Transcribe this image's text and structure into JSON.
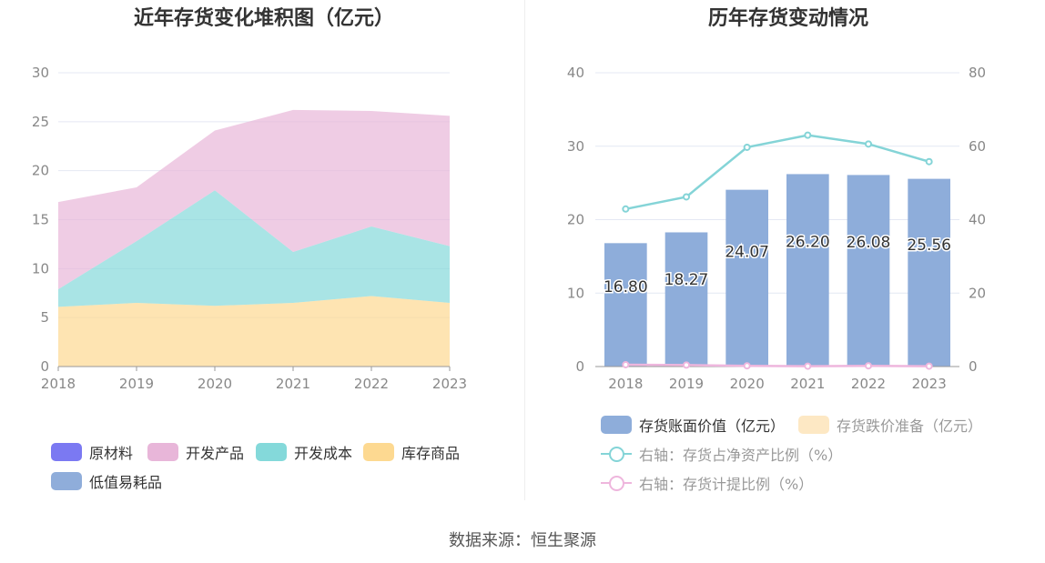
{
  "left": {
    "title": "近年存货变化堆积图（亿元）",
    "chart_data": {
      "type": "area",
      "stacked": true,
      "categories": [
        "2018",
        "2019",
        "2020",
        "2021",
        "2022",
        "2023"
      ],
      "ylim": [
        0,
        30
      ],
      "yticks": [
        0,
        5,
        10,
        15,
        20,
        25,
        30
      ],
      "grid": true,
      "legend_position": "bottom",
      "series": [
        {
          "name": "库存商品",
          "color": "#fdd991",
          "values": [
            6.1,
            6.5,
            6.2,
            6.5,
            7.2,
            6.5
          ]
        },
        {
          "name": "开发成本",
          "color": "#84d9da",
          "values": [
            1.8,
            6.3,
            11.8,
            5.2,
            7.1,
            5.8
          ]
        },
        {
          "name": "开发产品",
          "color": "#e8b6d9",
          "values": [
            8.9,
            5.5,
            6.1,
            14.5,
            11.8,
            13.3
          ]
        },
        {
          "name": "原材料",
          "color": "#7b79f2",
          "values": [
            0,
            0,
            0,
            0,
            0,
            0
          ]
        },
        {
          "name": "低值易耗品",
          "color": "#8fadda",
          "values": [
            0,
            0,
            0,
            0,
            0,
            0
          ]
        }
      ],
      "legend_order": [
        "原材料",
        "开发产品",
        "开发成本",
        "库存商品",
        "低值易耗品"
      ]
    }
  },
  "right": {
    "title": "历年存货变动情况",
    "chart_data": {
      "type": "bar",
      "categories": [
        "2018",
        "2019",
        "2020",
        "2021",
        "2022",
        "2023"
      ],
      "ylim": [
        0,
        40
      ],
      "yticks": [
        0,
        10,
        20,
        30,
        40
      ],
      "y2lim": [
        0,
        80
      ],
      "y2ticks": [
        0,
        20,
        40,
        60,
        80
      ],
      "grid": true,
      "legend_position": "bottom",
      "bars": {
        "name": "存货账面价值（亿元）",
        "color": "#8eadda",
        "values": [
          16.8,
          18.27,
          24.07,
          26.2,
          26.08,
          25.56
        ],
        "labels": [
          "16.80",
          "18.27",
          "24.07",
          "26.20",
          "26.08",
          "25.56"
        ]
      },
      "bars_inactive": {
        "name": "存货跌价准备（亿元）",
        "color": "#fde8c4"
      },
      "lines": [
        {
          "name": "右轴：存货占净资产比例（%）",
          "color": "#84d4d7",
          "axis": "right",
          "values": [
            42.9,
            46.2,
            59.7,
            63.0,
            60.6,
            55.8
          ]
        },
        {
          "name": "右轴：存货计提比例（%）",
          "color": "#eeb6dd",
          "axis": "right",
          "values": [
            0.5,
            0.4,
            0.2,
            0.1,
            0.2,
            0.1
          ]
        }
      ]
    }
  },
  "source": "数据来源：恒生聚源"
}
